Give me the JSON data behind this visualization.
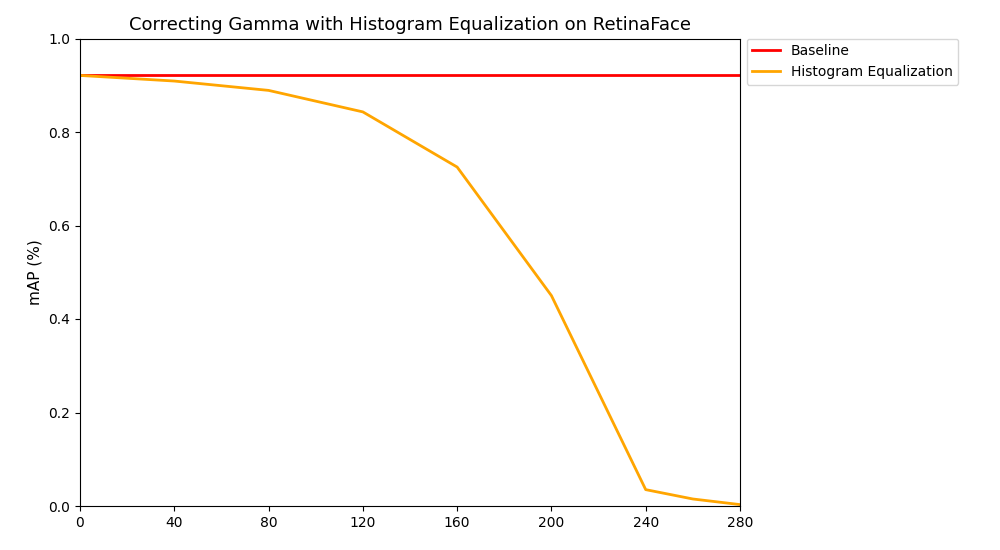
{
  "title": "Correcting Gamma with Histogram Equalization on RetinaFace",
  "xlabel": "",
  "ylabel": "mAP (%)",
  "xlim": [
    0,
    280
  ],
  "ylim": [
    0.0,
    1.0
  ],
  "xticks": [
    0,
    40,
    80,
    120,
    160,
    200,
    240,
    280
  ],
  "yticks": [
    0.0,
    0.2,
    0.4,
    0.6,
    0.8,
    1.0
  ],
  "baseline_x": [
    0,
    280
  ],
  "baseline_y": [
    0.921,
    0.921
  ],
  "baseline_color": "red",
  "baseline_label": "Baseline",
  "hist_eq_x": [
    0,
    40,
    80,
    120,
    160,
    200,
    240,
    260,
    280
  ],
  "hist_eq_y": [
    0.921,
    0.909,
    0.889,
    0.843,
    0.725,
    0.45,
    0.035,
    0.015,
    0.003
  ],
  "hist_eq_color": "orange",
  "hist_eq_label": "Histogram Equalization",
  "line_width": 2.0,
  "figsize": [
    10,
    5.5
  ],
  "dpi": 100
}
